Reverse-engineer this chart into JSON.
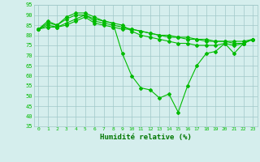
{
  "x": [
    0,
    1,
    2,
    3,
    4,
    5,
    6,
    7,
    8,
    9,
    10,
    11,
    12,
    13,
    14,
    15,
    16,
    17,
    18,
    19,
    20,
    21,
    22,
    23
  ],
  "line1": [
    83,
    87,
    85,
    89,
    91,
    91,
    89,
    87,
    86,
    71,
    60,
    54,
    53,
    49,
    51,
    42,
    55,
    65,
    71,
    72,
    76,
    71,
    76,
    78
  ],
  "line2": [
    83,
    86,
    85,
    88,
    90,
    90,
    88,
    87,
    86,
    85,
    82,
    80,
    79,
    78,
    77,
    76,
    76,
    75,
    75,
    75,
    76,
    75,
    76,
    78
  ],
  "line3": [
    83,
    85,
    84,
    86,
    88,
    90,
    87,
    86,
    85,
    84,
    83,
    82,
    81,
    80,
    79,
    79,
    78,
    78,
    77,
    77,
    77,
    76,
    76,
    78
  ],
  "line4": [
    83,
    84,
    84,
    85,
    87,
    89,
    86,
    85,
    84,
    83,
    83,
    82,
    81,
    80,
    80,
    79,
    79,
    78,
    78,
    77,
    77,
    77,
    77,
    78
  ],
  "line_color": "#00bb00",
  "bg_color": "#d5eeed",
  "grid_color": "#a0c8c8",
  "xlabel": "Humidité relative (%)",
  "xlabel_color": "#007700",
  "ylim": [
    35,
    95
  ],
  "yticks": [
    35,
    40,
    45,
    50,
    55,
    60,
    65,
    70,
    75,
    80,
    85,
    90,
    95
  ],
  "xticks": [
    0,
    1,
    2,
    3,
    4,
    5,
    6,
    7,
    8,
    9,
    10,
    11,
    12,
    13,
    14,
    15,
    16,
    17,
    18,
    19,
    20,
    21,
    22,
    23
  ]
}
